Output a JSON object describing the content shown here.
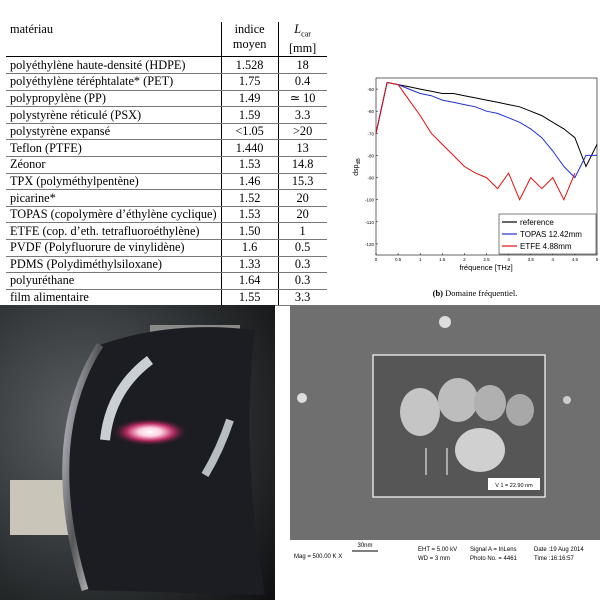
{
  "table": {
    "headers": {
      "material": "matériau",
      "index": [
        "indice",
        "moyen"
      ],
      "length": {
        "symbol": "L",
        "subscript": "car",
        "unit": "[mm]"
      }
    },
    "rows": [
      [
        "polyéthylène haute-densité (HDPE)",
        "1.528",
        "18"
      ],
      [
        "polyéthylène téréphtalate* (PET)",
        "1.75",
        "0.4"
      ],
      [
        "polypropylène (PP)",
        "1.49",
        "≃ 10"
      ],
      [
        "polystyrène réticulé (PSX)",
        "1.59",
        "3.3"
      ],
      [
        "polystyrène expansé",
        "<1.05",
        ">20"
      ],
      [
        "Teflon (PTFE)",
        "1.440",
        "13"
      ],
      [
        "Zéonor",
        "1.53",
        "14.8"
      ],
      [
        "TPX (polyméthylpentène)",
        "1.46",
        "15.3"
      ],
      [
        "picarine*",
        "1.52",
        "20"
      ],
      [
        "TOPAS (copolymère d’éthylène cyclique)",
        "1.53",
        "20"
      ],
      [
        "ETFE (cop. d’eth. tetrafluoroéthylène)",
        "1.50",
        "1"
      ],
      [
        "PVDF (Polyfluorure de vinylidène)",
        "1.6",
        "0.5"
      ],
      [
        "PDMS (Polydiméthylsiloxane)",
        "1.33",
        "0.3"
      ],
      [
        "polyuréthane",
        "1.64",
        "0.3"
      ],
      [
        "film alimentaire",
        "1.55",
        "3.3"
      ]
    ]
  },
  "chart_data": {
    "type": "line",
    "xlabel": "fréquence [THz]",
    "ylabel": "dsp",
    "ylabel_sub": "dB",
    "caption_label": "(b)",
    "caption": "Domaine fréquentiel.",
    "x": [
      0,
      0.25,
      0.5,
      0.75,
      1,
      1.25,
      1.5,
      1.75,
      2,
      2.25,
      2.5,
      2.75,
      3,
      3.25,
      3.5,
      3.75,
      4,
      4.25,
      4.5,
      4.75,
      5
    ],
    "series": [
      {
        "name": "reference",
        "color": "#000000",
        "values": [
          -70,
          -47,
          -48,
          -49,
          -50,
          -51,
          -52,
          -52,
          -53,
          -54,
          -55,
          -56,
          -57,
          -58,
          -60,
          -62,
          -65,
          -68,
          -72,
          -85,
          -75
        ]
      },
      {
        "name": "TOPAS 12.42mm",
        "color": "#1f2fd6",
        "values": [
          -70,
          -47,
          -48,
          -50,
          -52,
          -53,
          -55,
          -56,
          -57,
          -58,
          -60,
          -61,
          -63,
          -65,
          -68,
          -72,
          -78,
          -85,
          -90,
          -80,
          -80
        ]
      },
      {
        "name": "ETFE 4.88mm",
        "color": "#e01010",
        "values": [
          -70,
          -47,
          -48,
          -55,
          -62,
          -70,
          -75,
          -80,
          -85,
          -88,
          -90,
          -95,
          -88,
          -100,
          -90,
          -95,
          -90,
          -100,
          -88,
          null,
          null
        ]
      }
    ],
    "xlim": [
      0,
      5
    ],
    "ylim": [
      -125,
      -45
    ],
    "xticks": [
      0,
      0.5,
      1,
      1.5,
      2,
      2.5,
      3,
      3.5,
      4,
      4.5,
      5
    ],
    "yticks": [
      -50,
      -60,
      -70,
      -80,
      -90,
      -100,
      -110,
      -120
    ],
    "legend": "lower right"
  },
  "sem": {
    "measure": "V 1 = 22.90 nm",
    "scale": "30nm",
    "mag": "Mag = 500.00 K X",
    "eht": "EHT = 5.00 kV",
    "wd": "WD = 3 mm",
    "signal": "Signal A = InLens",
    "photo": "Photo No. = 4461",
    "date": "Date :19 Aug 2014",
    "time": "Time :16:16:57"
  }
}
